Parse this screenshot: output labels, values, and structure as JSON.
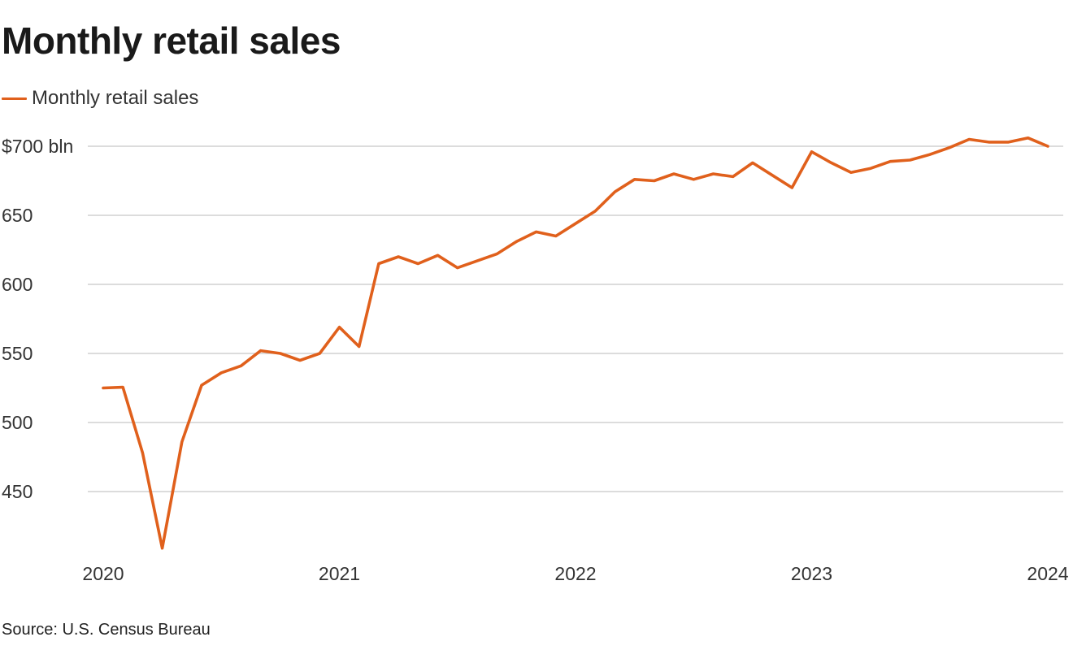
{
  "title": "Monthly retail sales",
  "source": "Source: U.S. Census Bureau",
  "colors": {
    "series": "#e0601c",
    "grid": "#c8c8c8",
    "text": "#333333"
  },
  "chart_data": {
    "type": "line",
    "title": "Monthly retail sales",
    "xlabel": "",
    "ylabel": "",
    "legend": "top-left",
    "grid": true,
    "ylim": [
      405,
      705
    ],
    "y_ticks": [
      450,
      500,
      550,
      600,
      650,
      700
    ],
    "y_tick_labels": [
      "450",
      "500",
      "550",
      "600",
      "650",
      "$700 bln"
    ],
    "x_ticks": [
      "2020-01",
      "2021-01",
      "2022-01",
      "2023-01",
      "2024-01"
    ],
    "x_tick_labels": [
      "2020",
      "2021",
      "2022",
      "2023",
      "2024"
    ],
    "x": [
      "2020-01",
      "2020-02",
      "2020-03",
      "2020-04",
      "2020-05",
      "2020-06",
      "2020-07",
      "2020-08",
      "2020-09",
      "2020-10",
      "2020-11",
      "2020-12",
      "2021-01",
      "2021-02",
      "2021-03",
      "2021-04",
      "2021-05",
      "2021-06",
      "2021-07",
      "2021-08",
      "2021-09",
      "2021-10",
      "2021-11",
      "2021-12",
      "2022-01",
      "2022-02",
      "2022-03",
      "2022-04",
      "2022-05",
      "2022-06",
      "2022-07",
      "2022-08",
      "2022-09",
      "2022-10",
      "2022-11",
      "2022-12",
      "2023-01",
      "2023-02",
      "2023-03",
      "2023-04",
      "2023-05",
      "2023-06",
      "2023-07",
      "2023-08",
      "2023-09",
      "2023-10",
      "2023-11",
      "2023-12",
      "2024-01"
    ],
    "series": [
      {
        "name": "Monthly retail sales",
        "values": [
          525,
          525.5,
          478,
          409,
          486,
          527,
          536,
          541,
          552,
          550,
          545,
          550,
          569,
          555,
          615,
          620,
          615,
          621,
          612,
          617,
          622,
          631,
          638,
          635,
          644,
          653,
          667,
          676,
          675,
          680,
          676,
          680,
          678,
          688,
          679,
          670,
          696,
          688,
          681,
          684,
          689,
          690,
          694,
          699,
          705,
          703,
          703,
          706,
          700
        ]
      }
    ]
  }
}
